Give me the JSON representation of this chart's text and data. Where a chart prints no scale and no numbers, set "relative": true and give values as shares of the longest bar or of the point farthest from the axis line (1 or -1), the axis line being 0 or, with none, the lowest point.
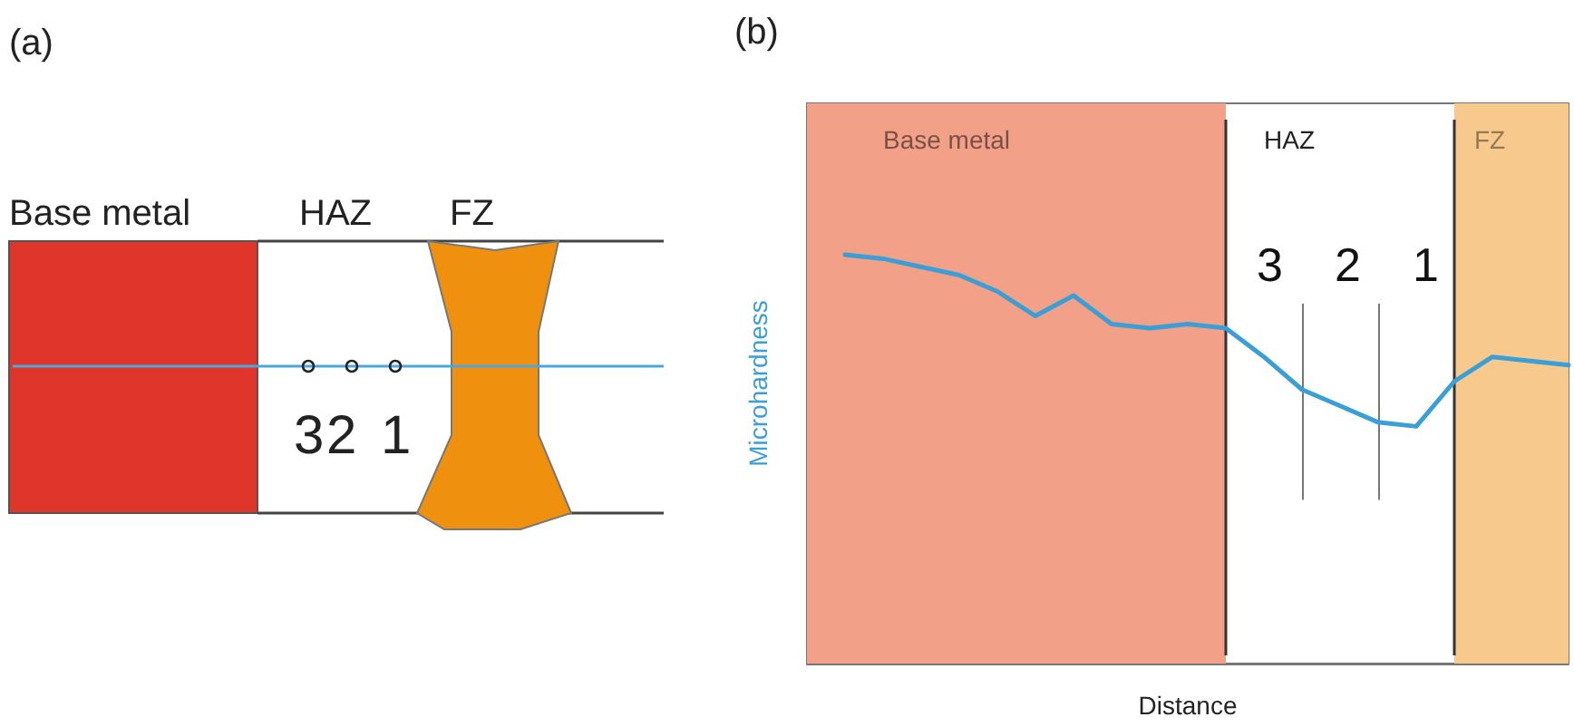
{
  "chart_data": [
    {
      "type": "other",
      "title": "(a)",
      "annotations": [
        "Base metal",
        "HAZ",
        "FZ",
        "3",
        "2",
        "1"
      ]
    },
    {
      "type": "line",
      "title": "(b)",
      "xlabel": "Distance",
      "ylabel": "Microhardness",
      "relative": true,
      "marker": "none",
      "line_style": "solid",
      "categories": [
        null,
        null,
        null,
        null,
        null,
        null,
        null,
        null,
        null,
        null,
        null,
        null,
        null,
        null,
        null,
        null,
        null,
        null,
        null,
        null,
        null
      ],
      "series": [
        {
          "color": "#3a9fd6",
          "values": [
            null,
            1.0,
            0.99,
            0.97,
            0.95,
            0.91,
            0.85,
            0.9,
            0.83,
            0.82,
            0.83,
            0.82,
            0.75,
            0.67,
            0.63,
            0.59,
            0.58,
            0.69,
            0.75,
            0.74,
            0.73
          ]
        }
      ],
      "annotations": [
        "Base metal",
        "HAZ",
        "FZ",
        "3",
        "2",
        "1"
      ]
    }
  ]
}
